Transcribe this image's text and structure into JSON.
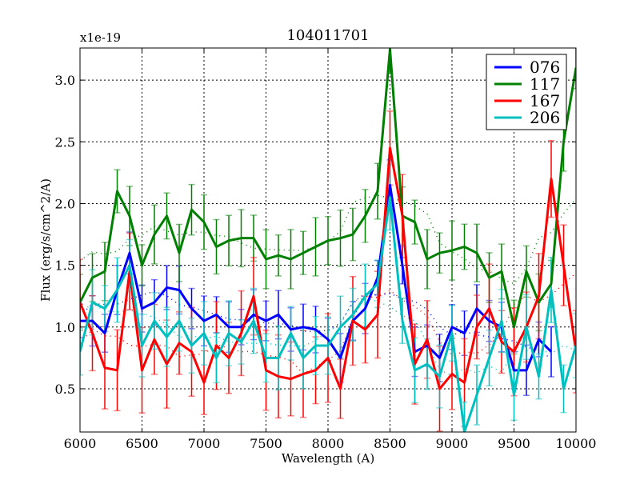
{
  "chart_data": {
    "type": "line",
    "title": "104011701",
    "xlabel": "Wavelength (A)",
    "ylabel": "Flux (erg/s/cm^2/A)",
    "y_offset_label": "x1e-19",
    "xlim": [
      6000,
      10000
    ],
    "ylim": [
      0.15,
      3.26
    ],
    "xticks": [
      6000,
      6500,
      7000,
      7500,
      8000,
      8500,
      9000,
      9500,
      10000
    ],
    "yticks": [
      0.5,
      1.0,
      1.5,
      2.0,
      2.5,
      3.0
    ],
    "ytick_labels": [
      "0.5",
      "1.0",
      "1.5",
      "2.0",
      "2.5",
      "3.0"
    ],
    "grid": true,
    "legend_position": "top-right",
    "x": [
      6000,
      6100,
      6200,
      6300,
      6400,
      6500,
      6600,
      6700,
      6800,
      6900,
      7000,
      7100,
      7200,
      7300,
      7400,
      7500,
      7600,
      7700,
      7800,
      7900,
      8000,
      8100,
      8200,
      8300,
      8400,
      8500,
      8600,
      8700,
      8800,
      8900,
      9000,
      9100,
      9200,
      9300,
      9400,
      9500,
      9600,
      9700,
      9800,
      9900,
      10000
    ],
    "series": [
      {
        "name": "076",
        "color": "#0000ff",
        "err": 0.17,
        "values": [
          1.05,
          1.05,
          0.95,
          1.3,
          1.6,
          1.15,
          1.2,
          1.32,
          1.3,
          1.15,
          1.05,
          1.1,
          1.0,
          1.0,
          1.1,
          1.05,
          1.1,
          0.98,
          1.0,
          0.98,
          0.9,
          0.75,
          1.05,
          1.15,
          1.4,
          2.15,
          1.5,
          0.8,
          0.85,
          0.75,
          1.0,
          0.95,
          1.15,
          1.05,
          1.0,
          0.65,
          0.65,
          0.9,
          0.8,
          null,
          null
        ]
      },
      {
        "name": "117",
        "color": "#008000",
        "err": 0.2,
        "values": [
          1.2,
          1.4,
          1.45,
          2.1,
          1.9,
          1.5,
          1.75,
          1.9,
          1.6,
          1.95,
          1.85,
          1.65,
          1.7,
          1.72,
          1.72,
          1.55,
          1.58,
          1.55,
          1.6,
          1.65,
          1.7,
          1.72,
          1.75,
          1.9,
          2.1,
          3.25,
          1.9,
          1.85,
          1.55,
          1.6,
          1.62,
          1.65,
          1.6,
          1.4,
          1.45,
          1.0,
          1.45,
          1.2,
          1.35,
          2.5,
          3.1
        ]
      },
      {
        "name": "167",
        "color": "#ff0000",
        "err": 0.3,
        "values": [
          1.2,
          0.95,
          0.67,
          0.65,
          1.45,
          0.65,
          0.9,
          0.7,
          0.87,
          0.8,
          0.55,
          0.85,
          0.75,
          0.95,
          1.25,
          0.65,
          0.6,
          0.58,
          0.62,
          0.65,
          0.75,
          0.5,
          1.05,
          0.98,
          1.1,
          2.45,
          1.9,
          0.7,
          0.9,
          0.5,
          0.62,
          0.55,
          1.0,
          1.15,
          0.88,
          0.8,
          1.0,
          1.25,
          2.2,
          1.5,
          0.8
        ]
      },
      {
        "name": "206",
        "color": "#00bfbf",
        "err": 0.22,
        "values": [
          0.8,
          1.2,
          1.15,
          1.3,
          1.5,
          0.85,
          1.05,
          0.92,
          1.05,
          0.85,
          0.95,
          0.75,
          0.95,
          0.88,
          1.05,
          0.75,
          0.75,
          0.95,
          0.75,
          0.85,
          0.85,
          1.0,
          1.1,
          1.25,
          1.35,
          2.05,
          1.05,
          0.65,
          0.7,
          0.6,
          0.95,
          0.15,
          0.45,
          0.75,
          1.05,
          0.45,
          1.0,
          0.6,
          1.3,
          0.5,
          0.85
        ]
      }
    ]
  }
}
